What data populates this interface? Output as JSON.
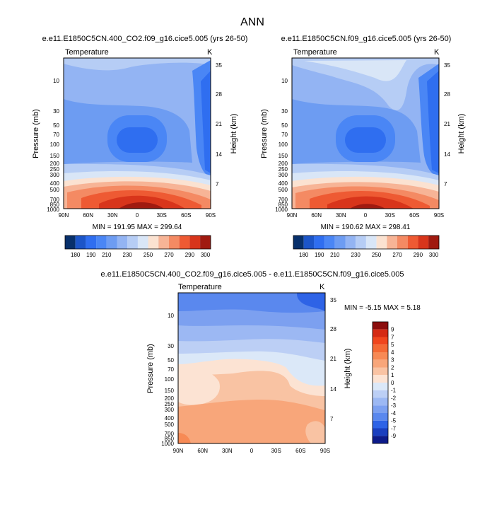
{
  "chart_data": {
    "title": "ANN",
    "panels": [
      {
        "id": "top-left",
        "type": "contour",
        "title": "e.e11.E1850C5CN.400_CO2.f09_g16.cice5.005 (yrs 26-50)",
        "variable": "Temperature",
        "units": "K",
        "ylabel": "Pressure (mb)",
        "ylabel_right": "Height (km)",
        "x_ticks": [
          "90N",
          "60N",
          "30N",
          "0",
          "30S",
          "60S",
          "90S"
        ],
        "p_ticks": [
          "10",
          "30",
          "50",
          "70",
          "100",
          "150",
          "200",
          "250",
          "300",
          "400",
          "500",
          "700",
          "850",
          "1000"
        ],
        "h_ticks": [
          "35",
          "28",
          "21",
          "14",
          "7"
        ],
        "stats": "MIN = 191.95  MAX = 299.64",
        "levels": [
          "180",
          "190",
          "200",
          "210",
          "220",
          "230",
          "240",
          "250",
          "260",
          "270",
          "280",
          "290",
          "300"
        ],
        "level_labels": [
          "180",
          "190",
          "210",
          "230",
          "250",
          "270",
          "290",
          "300"
        ],
        "colors": [
          "#08306b",
          "#1c55c8",
          "#2f6ef0",
          "#4a86f5",
          "#6d9cf2",
          "#93b4f3",
          "#b6cdf5",
          "#d9e6f7",
          "#fbe2d1",
          "#f7b496",
          "#f48a63",
          "#ee5a33",
          "#d8351b",
          "#a01a10"
        ]
      },
      {
        "id": "top-right",
        "type": "contour",
        "title": "e.e11.E1850C5CN.f09_g16.cice5.005 (yrs 26-50)",
        "variable": "Temperature",
        "units": "K",
        "ylabel": "Pressure (mb)",
        "ylabel_right": "Height (km)",
        "x_ticks": [
          "90N",
          "60N",
          "30N",
          "0",
          "30S",
          "60S",
          "90S"
        ],
        "p_ticks": [
          "10",
          "30",
          "50",
          "70",
          "100",
          "150",
          "200",
          "250",
          "300",
          "400",
          "500",
          "700",
          "850",
          "1000"
        ],
        "h_ticks": [
          "35",
          "28",
          "21",
          "14",
          "7"
        ],
        "stats": "MIN = 190.62  MAX = 298.41",
        "levels": [
          "180",
          "190",
          "200",
          "210",
          "220",
          "230",
          "240",
          "250",
          "260",
          "270",
          "280",
          "290",
          "300"
        ],
        "level_labels": [
          "180",
          "190",
          "210",
          "230",
          "250",
          "270",
          "290",
          "300"
        ],
        "colors": [
          "#08306b",
          "#1c55c8",
          "#2f6ef0",
          "#4a86f5",
          "#6d9cf2",
          "#93b4f3",
          "#b6cdf5",
          "#d9e6f7",
          "#fbe2d1",
          "#f7b496",
          "#f48a63",
          "#ee5a33",
          "#d8351b",
          "#a01a10"
        ]
      },
      {
        "id": "bottom",
        "type": "contour",
        "title": "e.e11.E1850C5CN.400_CO2.f09_g16.cice5.005 - e.e11.E1850C5CN.f09_g16.cice5.005",
        "variable": "Temperature",
        "units": "K",
        "ylabel": "Pressure (mb)",
        "ylabel_right": "Height (km)",
        "x_ticks": [
          "90N",
          "60N",
          "30N",
          "0",
          "30S",
          "60S",
          "90S"
        ],
        "p_ticks": [
          "10",
          "30",
          "50",
          "70",
          "100",
          "150",
          "200",
          "250",
          "300",
          "400",
          "500",
          "700",
          "850",
          "1000"
        ],
        "h_ticks": [
          "35",
          "28",
          "21",
          "14",
          "7"
        ],
        "stats": "MIN =  -5.15  MAX =   5.18",
        "levels": [
          "9",
          "7",
          "5",
          "4",
          "3",
          "2",
          "1",
          "0",
          "-1",
          "-2",
          "-3",
          "-4",
          "-5",
          "-7",
          "-9"
        ],
        "colors": [
          "#8b0d0d",
          "#d52a13",
          "#f0461d",
          "#f46a35",
          "#f78a55",
          "#f8a67a",
          "#f9c3a3",
          "#fce3d3",
          "#dbe8f8",
          "#bccff5",
          "#9cb8f3",
          "#7ca0f0",
          "#5a88ee",
          "#2e63e6",
          "#1a3fbf",
          "#0d1b8a"
        ]
      }
    ]
  }
}
